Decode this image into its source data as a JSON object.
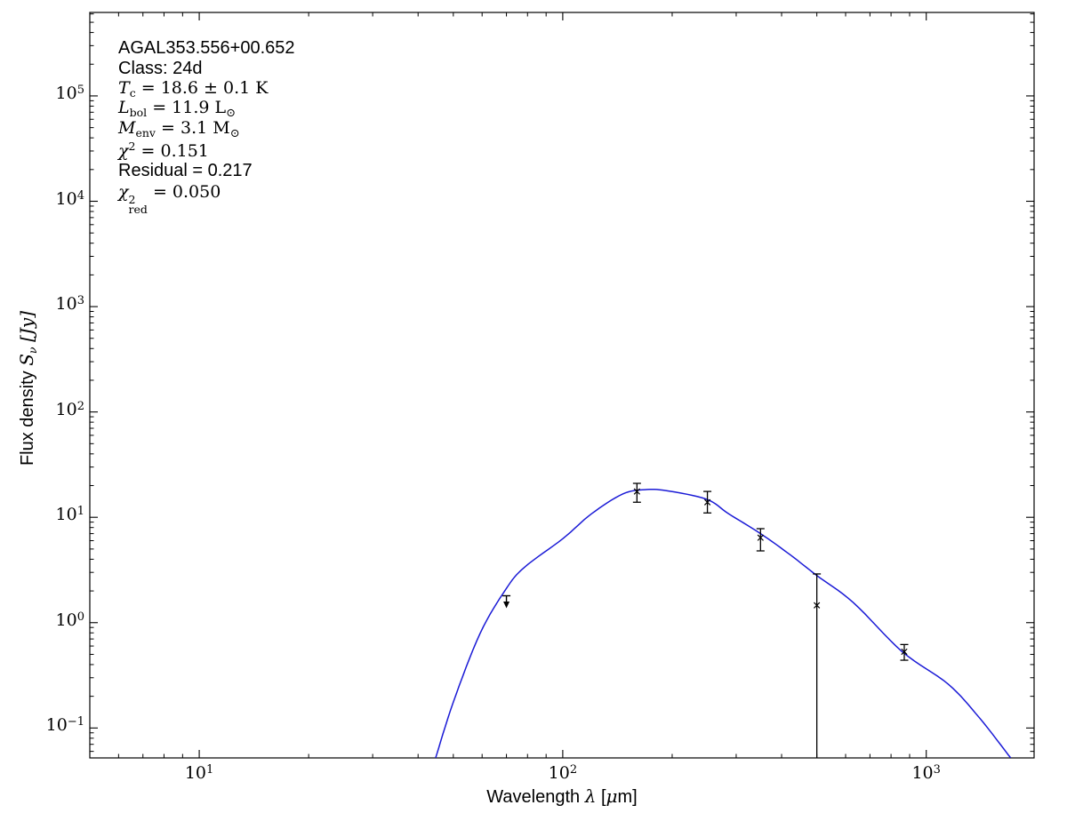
{
  "figure": {
    "annotation": {
      "source": "AGAL353.556+00.652",
      "class_line": "Class: 24d",
      "tc": {
        "sym": "T",
        "sub": "c",
        "eq": "= 18.6 ± 0.1 K"
      },
      "lbol": {
        "sym": "L",
        "sub": "bol",
        "eq": "= 11.9",
        "unit": "L",
        "unit_sub": "⊙"
      },
      "menv": {
        "sym": "M",
        "sub": "env",
        "eq": "= 3.1",
        "unit": "M",
        "unit_sub": "⊙"
      },
      "chi2": {
        "sym": "χ",
        "sup": "2",
        "eq": "= 0.151"
      },
      "residual": "Residual = 0.217",
      "chi2red": {
        "sym": "χ",
        "sup": "2",
        "sub": "red",
        "eq": "= 0.050"
      }
    },
    "xlabel": {
      "text": "Wavelength",
      "lambda": "λ",
      "bracket_open": "[",
      "mu": "μ",
      "suffix": "m]"
    },
    "ylabel": {
      "text": "Flux density",
      "sym": "S",
      "sub": "ν",
      "unit": "[Jy]"
    }
  },
  "chart_data": {
    "type": "line",
    "title": "SED greybody fit for AGAL353.556+00.652",
    "xlabel": "Wavelength λ [μm]",
    "ylabel": "Flux density Sν [Jy]",
    "x_axis": {
      "scale": "log",
      "range": [
        5.0,
        1980
      ],
      "major_ticks": [
        10,
        100,
        1000
      ],
      "tick_base": "10",
      "tick_exponents": [
        "1",
        "2",
        "3"
      ],
      "grid": false
    },
    "y_axis": {
      "scale": "log",
      "range": [
        0.052,
        620000
      ],
      "major_ticks": [
        0.1,
        1,
        10,
        100,
        1000,
        10000,
        100000
      ],
      "tick_base": "10",
      "tick_exponents": [
        "−1",
        "0",
        "1",
        "2",
        "3",
        "4",
        "5"
      ],
      "grid": false
    },
    "legend": "none",
    "colors": {
      "model_curve": "#1a1ad6",
      "data": "#000000",
      "text": "#000000"
    },
    "fit_params": {
      "source": "AGAL353.556+00.652",
      "class": "24d",
      "T_c_K": 18.6,
      "T_c_err_K": 0.1,
      "L_bol_Lsun": 11.9,
      "M_env_Msun": 3.1,
      "chi2": 0.151,
      "residual": 0.217,
      "chi2_red": 0.05
    },
    "model_curve": {
      "points": [
        [
          44.7,
          0.052
        ],
        [
          50,
          0.176
        ],
        [
          59.2,
          0.785
        ],
        [
          69.7,
          2.07
        ],
        [
          78.5,
          3.36
        ],
        [
          100,
          6.26
        ],
        [
          120,
          10.8
        ],
        [
          146,
          16.6
        ],
        [
          168,
          18.3
        ],
        [
          193,
          17.9
        ],
        [
          249,
          14.8
        ],
        [
          286,
          10.8
        ],
        [
          349,
          7.05
        ],
        [
          425,
          4.34
        ],
        [
          498,
          2.83
        ],
        [
          630,
          1.55
        ],
        [
          859,
          0.53
        ],
        [
          1150,
          0.26
        ],
        [
          1400,
          0.125
        ],
        [
          1707,
          0.052
        ]
      ]
    },
    "data_points": [
      {
        "wavelength_um": 70,
        "flux_jy": 1.8,
        "upper_limit": true,
        "arrow_to": 1.4
      },
      {
        "wavelength_um": 160,
        "flux_jy": 17.6,
        "err_hi": 21.0,
        "err_lo": 13.9
      },
      {
        "wavelength_um": 250,
        "flux_jy": 13.9,
        "err_hi": 17.6,
        "err_lo": 11.0
      },
      {
        "wavelength_um": 350,
        "flux_jy": 6.4,
        "err_hi": 7.8,
        "err_lo": 4.8
      },
      {
        "wavelength_um": 500,
        "flux_jy": 1.46,
        "err_hi": 2.9,
        "err_lo": 0.052,
        "err_lo_clipped": true
      },
      {
        "wavelength_um": 870,
        "flux_jy": 0.53,
        "err_hi": 0.62,
        "err_lo": 0.44
      }
    ]
  }
}
